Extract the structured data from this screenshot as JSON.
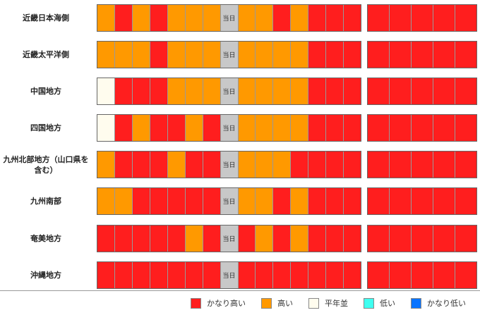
{
  "chart_data": {
    "type": "heatmap",
    "today_label": "当日",
    "today_index": 7,
    "group_sizes": [
      15,
      5
    ],
    "colors": {
      "かなり高い": "#ff1e1e",
      "高い": "#ff9900",
      "平年並": "#fffcee",
      "低い": "#3ffff0",
      "かなり低い": "#0a74ff",
      "当日": "#c8c8c8"
    },
    "rows": [
      {
        "label": "近畿日本海側",
        "cells": [
          "高い",
          "かなり高い",
          "高い",
          "かなり高い",
          "高い",
          "高い",
          "高い",
          "当日",
          "高い",
          "高い",
          "かなり高い",
          "高い",
          "かなり高い",
          "かなり高い",
          "かなり高い",
          "かなり高い",
          "かなり高い",
          "かなり高い",
          "かなり高い",
          "かなり高い"
        ]
      },
      {
        "label": "近畿太平洋側",
        "cells": [
          "高い",
          "高い",
          "高い",
          "かなり高い",
          "高い",
          "高い",
          "高い",
          "当日",
          "高い",
          "高い",
          "高い",
          "高い",
          "かなり高い",
          "かなり高い",
          "かなり高い",
          "かなり高い",
          "かなり高い",
          "かなり高い",
          "かなり高い",
          "かなり高い"
        ]
      },
      {
        "label": "中国地方",
        "cells": [
          "平年並",
          "かなり高い",
          "かなり高い",
          "かなり高い",
          "高い",
          "高い",
          "高い",
          "当日",
          "高い",
          "高い",
          "高い",
          "高い",
          "かなり高い",
          "かなり高い",
          "かなり高い",
          "かなり高い",
          "かなり高い",
          "かなり高い",
          "かなり高い",
          "かなり高い"
        ]
      },
      {
        "label": "四国地方",
        "cells": [
          "平年並",
          "かなり高い",
          "高い",
          "かなり高い",
          "かなり高い",
          "高い",
          "かなり高い",
          "当日",
          "高い",
          "高い",
          "高い",
          "高い",
          "かなり高い",
          "かなり高い",
          "かなり高い",
          "かなり高い",
          "かなり高い",
          "かなり高い",
          "かなり高い",
          "かなり高い"
        ]
      },
      {
        "label": "九州北部地方（山口県を含む）",
        "cells": [
          "高い",
          "かなり高い",
          "かなり高い",
          "かなり高い",
          "高い",
          "かなり高い",
          "かなり高い",
          "当日",
          "高い",
          "高い",
          "高い",
          "かなり高い",
          "かなり高い",
          "かなり高い",
          "かなり高い",
          "かなり高い",
          "かなり高い",
          "かなり高い",
          "かなり高い",
          "かなり高い"
        ]
      },
      {
        "label": "九州南部",
        "cells": [
          "高い",
          "高い",
          "かなり高い",
          "かなり高い",
          "かなり高い",
          "かなり高い",
          "かなり高い",
          "当日",
          "高い",
          "高い",
          "かなり高い",
          "高い",
          "かなり高い",
          "かなり高い",
          "かなり高い",
          "かなり高い",
          "かなり高い",
          "かなり高い",
          "かなり高い",
          "かなり高い"
        ]
      },
      {
        "label": "奄美地方",
        "cells": [
          "かなり高い",
          "かなり高い",
          "かなり高い",
          "かなり高い",
          "かなり高い",
          "高い",
          "かなり高い",
          "当日",
          "かなり高い",
          "高い",
          "かなり高い",
          "高い",
          "かなり高い",
          "かなり高い",
          "かなり高い",
          "かなり高い",
          "かなり高い",
          "かなり高い",
          "かなり高い",
          "かなり高い"
        ]
      },
      {
        "label": "沖縄地方",
        "cells": [
          "かなり高い",
          "かなり高い",
          "かなり高い",
          "かなり高い",
          "かなり高い",
          "かなり高い",
          "かなり高い",
          "当日",
          "かなり高い",
          "かなり高い",
          "かなり高い",
          "かなり高い",
          "かなり高い",
          "かなり高い",
          "かなり高い",
          "かなり高い",
          "かなり高い",
          "かなり高い",
          "かなり高い",
          "かなり高い"
        ]
      }
    ],
    "legend": [
      {
        "label": "かなり高い",
        "color": "#ff1e1e"
      },
      {
        "label": "高い",
        "color": "#ff9900"
      },
      {
        "label": "平年並",
        "color": "#fffcee"
      },
      {
        "label": "低い",
        "color": "#3ffff0"
      },
      {
        "label": "かなり低い",
        "color": "#0a74ff"
      }
    ]
  }
}
